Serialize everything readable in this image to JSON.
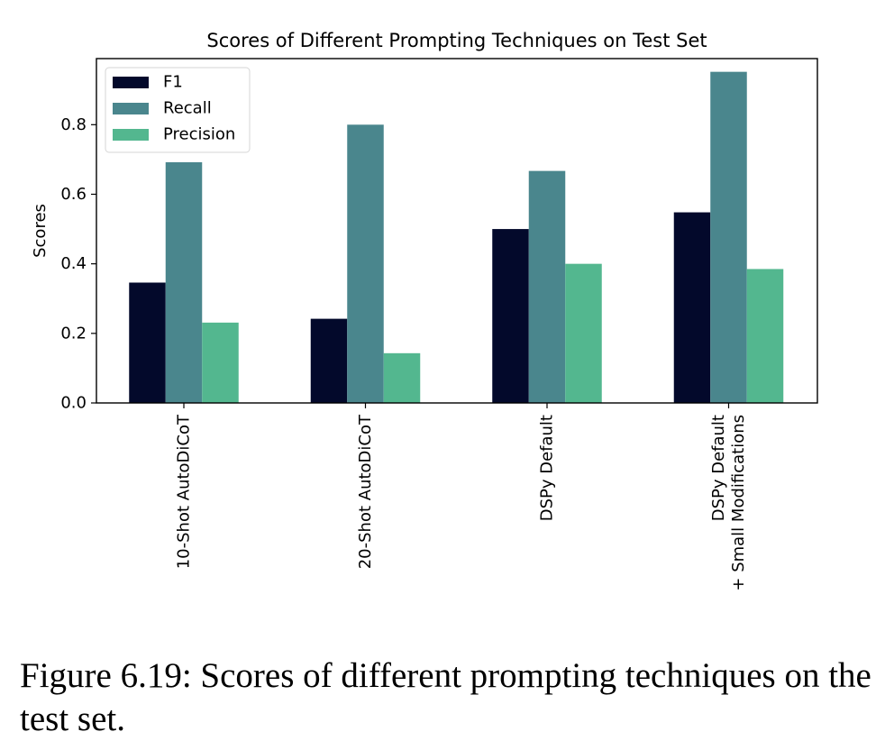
{
  "chart_data": {
    "type": "bar",
    "title": "Scores of Different Prompting Techniques on Test Set",
    "xlabel": "",
    "ylabel": "Scores",
    "ylim": [
      0,
      0.99
    ],
    "yticks": [
      "0.0",
      "0.2",
      "0.4",
      "0.6",
      "0.8"
    ],
    "categories": [
      [
        "10-Shot AutoDiCoT"
      ],
      [
        "20-Shot AutoDiCoT"
      ],
      [
        "DSPy Default"
      ],
      [
        "DSPy Default",
        "+ Small Modifications"
      ]
    ],
    "series": [
      {
        "name": "F1",
        "color": "#03092b",
        "values": [
          0.346,
          0.242,
          0.5,
          0.548
        ]
      },
      {
        "name": "Recall",
        "color": "#4a868d",
        "values": [
          0.692,
          0.8,
          0.667,
          0.952
        ]
      },
      {
        "name": "Precision",
        "color": "#53b78f",
        "values": [
          0.231,
          0.143,
          0.4,
          0.385
        ]
      }
    ],
    "legend_position": "top-left",
    "grid": false
  },
  "caption": "Figure 6.19: Scores of different prompting techniques on the test set."
}
